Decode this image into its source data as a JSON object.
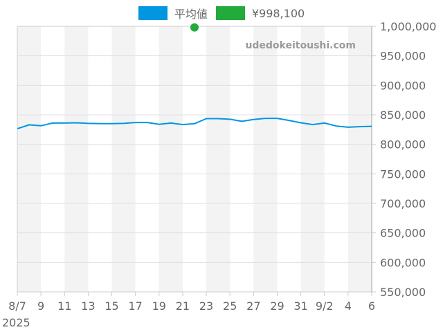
{
  "chart_data": {
    "type": "line",
    "title": "",
    "xlabel": "",
    "ylabel": "",
    "ylim": [
      550000,
      1000000
    ],
    "grid": true,
    "legend_position": "top",
    "x_tick_labels": [
      "8/7",
      "9",
      "11",
      "13",
      "15",
      "17",
      "19",
      "21",
      "23",
      "25",
      "27",
      "29",
      "31",
      "9/2",
      "4",
      "6"
    ],
    "x_year_label": "2025",
    "y_tick_labels": [
      "1,000,000",
      "950,000",
      "900,000",
      "850,000",
      "800,000",
      "750,000",
      "700,000",
      "650,000",
      "600,000",
      "550,000"
    ],
    "y_ticks": [
      1000000,
      950000,
      900000,
      850000,
      800000,
      750000,
      700000,
      650000,
      600000,
      550000
    ],
    "x": [
      "8/7",
      "8/8",
      "8/9",
      "8/10",
      "8/11",
      "8/12",
      "8/13",
      "8/14",
      "8/15",
      "8/16",
      "8/17",
      "8/18",
      "8/19",
      "8/20",
      "8/21",
      "8/22",
      "8/23",
      "8/24",
      "8/25",
      "8/26",
      "8/27",
      "8/28",
      "8/29",
      "8/30",
      "8/31",
      "9/1",
      "9/2",
      "9/3",
      "9/4",
      "9/5",
      "9/6"
    ],
    "series": [
      {
        "name": "平均値",
        "color": "#0096e0",
        "values": [
          826500,
          833000,
          831500,
          836000,
          836000,
          836500,
          835500,
          835000,
          835000,
          835500,
          837000,
          837000,
          834000,
          836000,
          833500,
          835000,
          843500,
          843500,
          842500,
          839000,
          842000,
          844000,
          844000,
          840500,
          836500,
          833500,
          836000,
          831000,
          829000,
          830000,
          830500
        ]
      },
      {
        "name": "¥998,100",
        "color": "#22aa3a",
        "type": "point",
        "points": [
          {
            "x": "8/22",
            "y": 998100
          }
        ]
      }
    ],
    "legend": [
      {
        "label": "平均値",
        "color": "#0096e0"
      },
      {
        "label": "¥998,100",
        "color": "#22aa3a"
      }
    ],
    "watermark": "udedokeitoushi.com"
  }
}
